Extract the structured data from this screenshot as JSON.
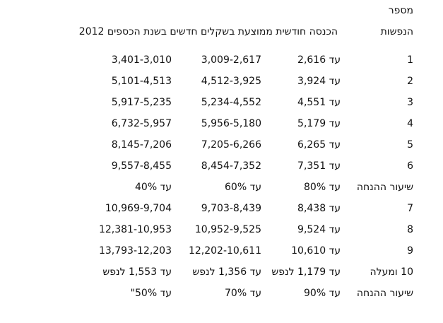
{
  "header": {
    "line1": "מספר",
    "line2": "הנפשות",
    "title": "הכנסה חודשית ממוצעת בשקלים חדשים בשנת הכספים 2012"
  },
  "table": {
    "rows": [
      [
        "1",
        "עד 2,616",
        "3,009-2,617",
        "3,401-3,010"
      ],
      [
        "2",
        "עד 3,924",
        "4,512-3,925",
        "5,101-4,513"
      ],
      [
        "3",
        "עד 4,551",
        "5,234-4,552",
        "5,917-5,235"
      ],
      [
        "4",
        "עד 5,179",
        "5,956-5,180",
        "6,732-5,957"
      ],
      [
        "5",
        "עד 6,265",
        "7,205-6,266",
        "8,145-7,206"
      ],
      [
        "6",
        "עד 7,351",
        "8,454-7,352",
        "9,557-8,455"
      ],
      [
        "שיעור ההנחה",
        "עד 80%",
        "עד 60%",
        "עד 40%"
      ],
      [
        "7",
        "עד 8,438",
        "9,703-8,439",
        "10,969-9,704"
      ],
      [
        "8",
        "עד 9,524",
        "10,952-9,525",
        "12,381-10,953"
      ],
      [
        "9",
        "עד 10,610",
        "12,202-10,611",
        "13,793-12,203"
      ],
      [
        "10 ומעלה",
        "עד 1,179 לנפש",
        "עד 1,356 לנפש",
        "עד 1,553 לנפש"
      ],
      [
        "שיעור ההנחה",
        "עד 90%",
        "עד 70%",
        "עד 50%\""
      ]
    ]
  }
}
